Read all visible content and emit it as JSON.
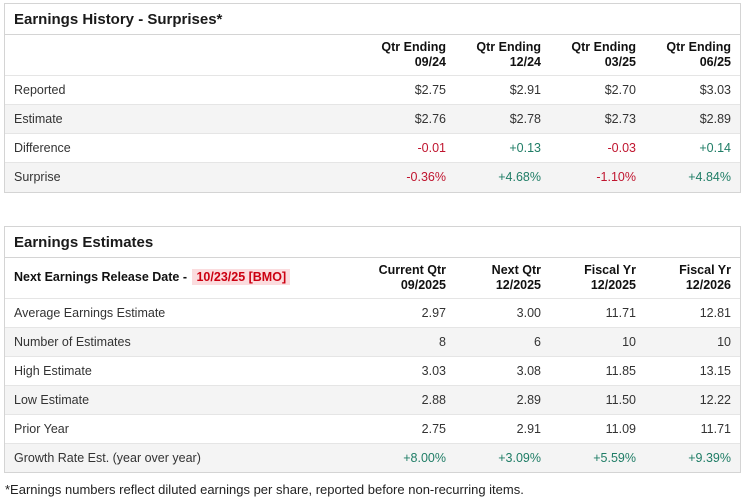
{
  "colors": {
    "negative_red": "#c0152f",
    "positive_green": "#1f7d66",
    "release_date_red": "#cc0011",
    "release_date_highlight_bg": "#fbdcde",
    "alt_row_bg": "#f4f4f4",
    "panel_border": "#d4d4d4"
  },
  "earnings_history": {
    "title": "Earnings History - Surprises*",
    "columns": [
      {
        "line1": "Qtr Ending",
        "line2": "09/24"
      },
      {
        "line1": "Qtr Ending",
        "line2": "12/24"
      },
      {
        "line1": "Qtr Ending",
        "line2": "03/25"
      },
      {
        "line1": "Qtr Ending",
        "line2": "06/25"
      }
    ],
    "rows": [
      {
        "label": "Reported",
        "values": [
          "$2.75",
          "$2.91",
          "$2.70",
          "$3.03"
        ]
      },
      {
        "label": "Estimate",
        "values": [
          "$2.76",
          "$2.78",
          "$2.73",
          "$2.89"
        ]
      },
      {
        "label": "Difference",
        "values": [
          "-0.01",
          "+0.13",
          "-0.03",
          "+0.14"
        ]
      },
      {
        "label": "Surprise",
        "values": [
          "-0.36%",
          "+4.68%",
          "-1.10%",
          "+4.84%"
        ]
      }
    ]
  },
  "earnings_estimates": {
    "title": "Earnings Estimates",
    "release_label": "Next Earnings Release Date -",
    "release_date": "10/23/25 [BMO]",
    "columns": [
      {
        "line1": "Current Qtr",
        "line2": "09/2025"
      },
      {
        "line1": "Next Qtr",
        "line2": "12/2025"
      },
      {
        "line1": "Fiscal Yr",
        "line2": "12/2025"
      },
      {
        "line1": "Fiscal Yr",
        "line2": "12/2026"
      }
    ],
    "rows": [
      {
        "label": "Average Earnings Estimate",
        "values": [
          "2.97",
          "3.00",
          "11.71",
          "12.81"
        ]
      },
      {
        "label": "Number of Estimates",
        "values": [
          "8",
          "6",
          "10",
          "10"
        ]
      },
      {
        "label": "High Estimate",
        "values": [
          "3.03",
          "3.08",
          "11.85",
          "13.15"
        ]
      },
      {
        "label": "Low Estimate",
        "values": [
          "2.88",
          "2.89",
          "11.50",
          "12.22"
        ]
      },
      {
        "label": "Prior Year",
        "values": [
          "2.75",
          "2.91",
          "11.09",
          "11.71"
        ]
      },
      {
        "label": "Growth Rate Est. (year over year)",
        "values": [
          "+8.00%",
          "+3.09%",
          "+5.59%",
          "+9.39%"
        ]
      }
    ]
  },
  "footnote": "*Earnings numbers reflect diluted earnings per share, reported before non-recurring items."
}
